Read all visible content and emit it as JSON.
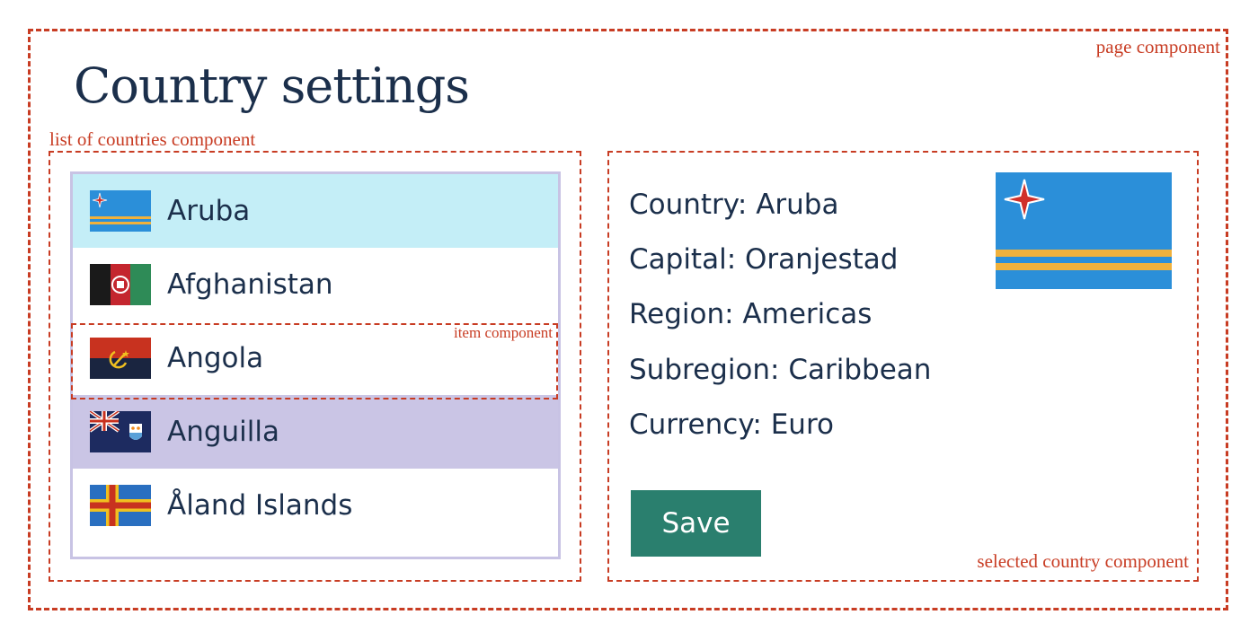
{
  "page": {
    "title": "Country settings",
    "annotation": "page component"
  },
  "list": {
    "annotation": "list of countries component",
    "item_annotation": "item component",
    "items": [
      {
        "name": "Aruba",
        "flag": "aruba-flag-icon",
        "state": "selected"
      },
      {
        "name": "Afghanistan",
        "flag": "afghanistan-flag-icon",
        "state": "normal"
      },
      {
        "name": "Angola",
        "flag": "angola-flag-icon",
        "state": "normal"
      },
      {
        "name": "Anguilla",
        "flag": "anguilla-flag-icon",
        "state": "hovered"
      },
      {
        "name": "Åland Islands",
        "flag": "aland-islands-flag-icon",
        "state": "normal"
      }
    ]
  },
  "detail": {
    "annotation": "selected country component",
    "country": "Country: Aruba",
    "capital": "Capital: Oranjestad",
    "region": "Region: Americas",
    "subregion": "Subregion: Caribbean",
    "currency": "Currency: Euro",
    "flag": "aruba-flag-icon",
    "save_label": "Save"
  },
  "colors": {
    "annotation": "#c83c23",
    "text": "#1b2f4b",
    "selected_item": "#c4eef7",
    "hovered_item": "#cac5e5",
    "list_border": "#c8c3e4",
    "save_button": "#2a7f6e"
  }
}
